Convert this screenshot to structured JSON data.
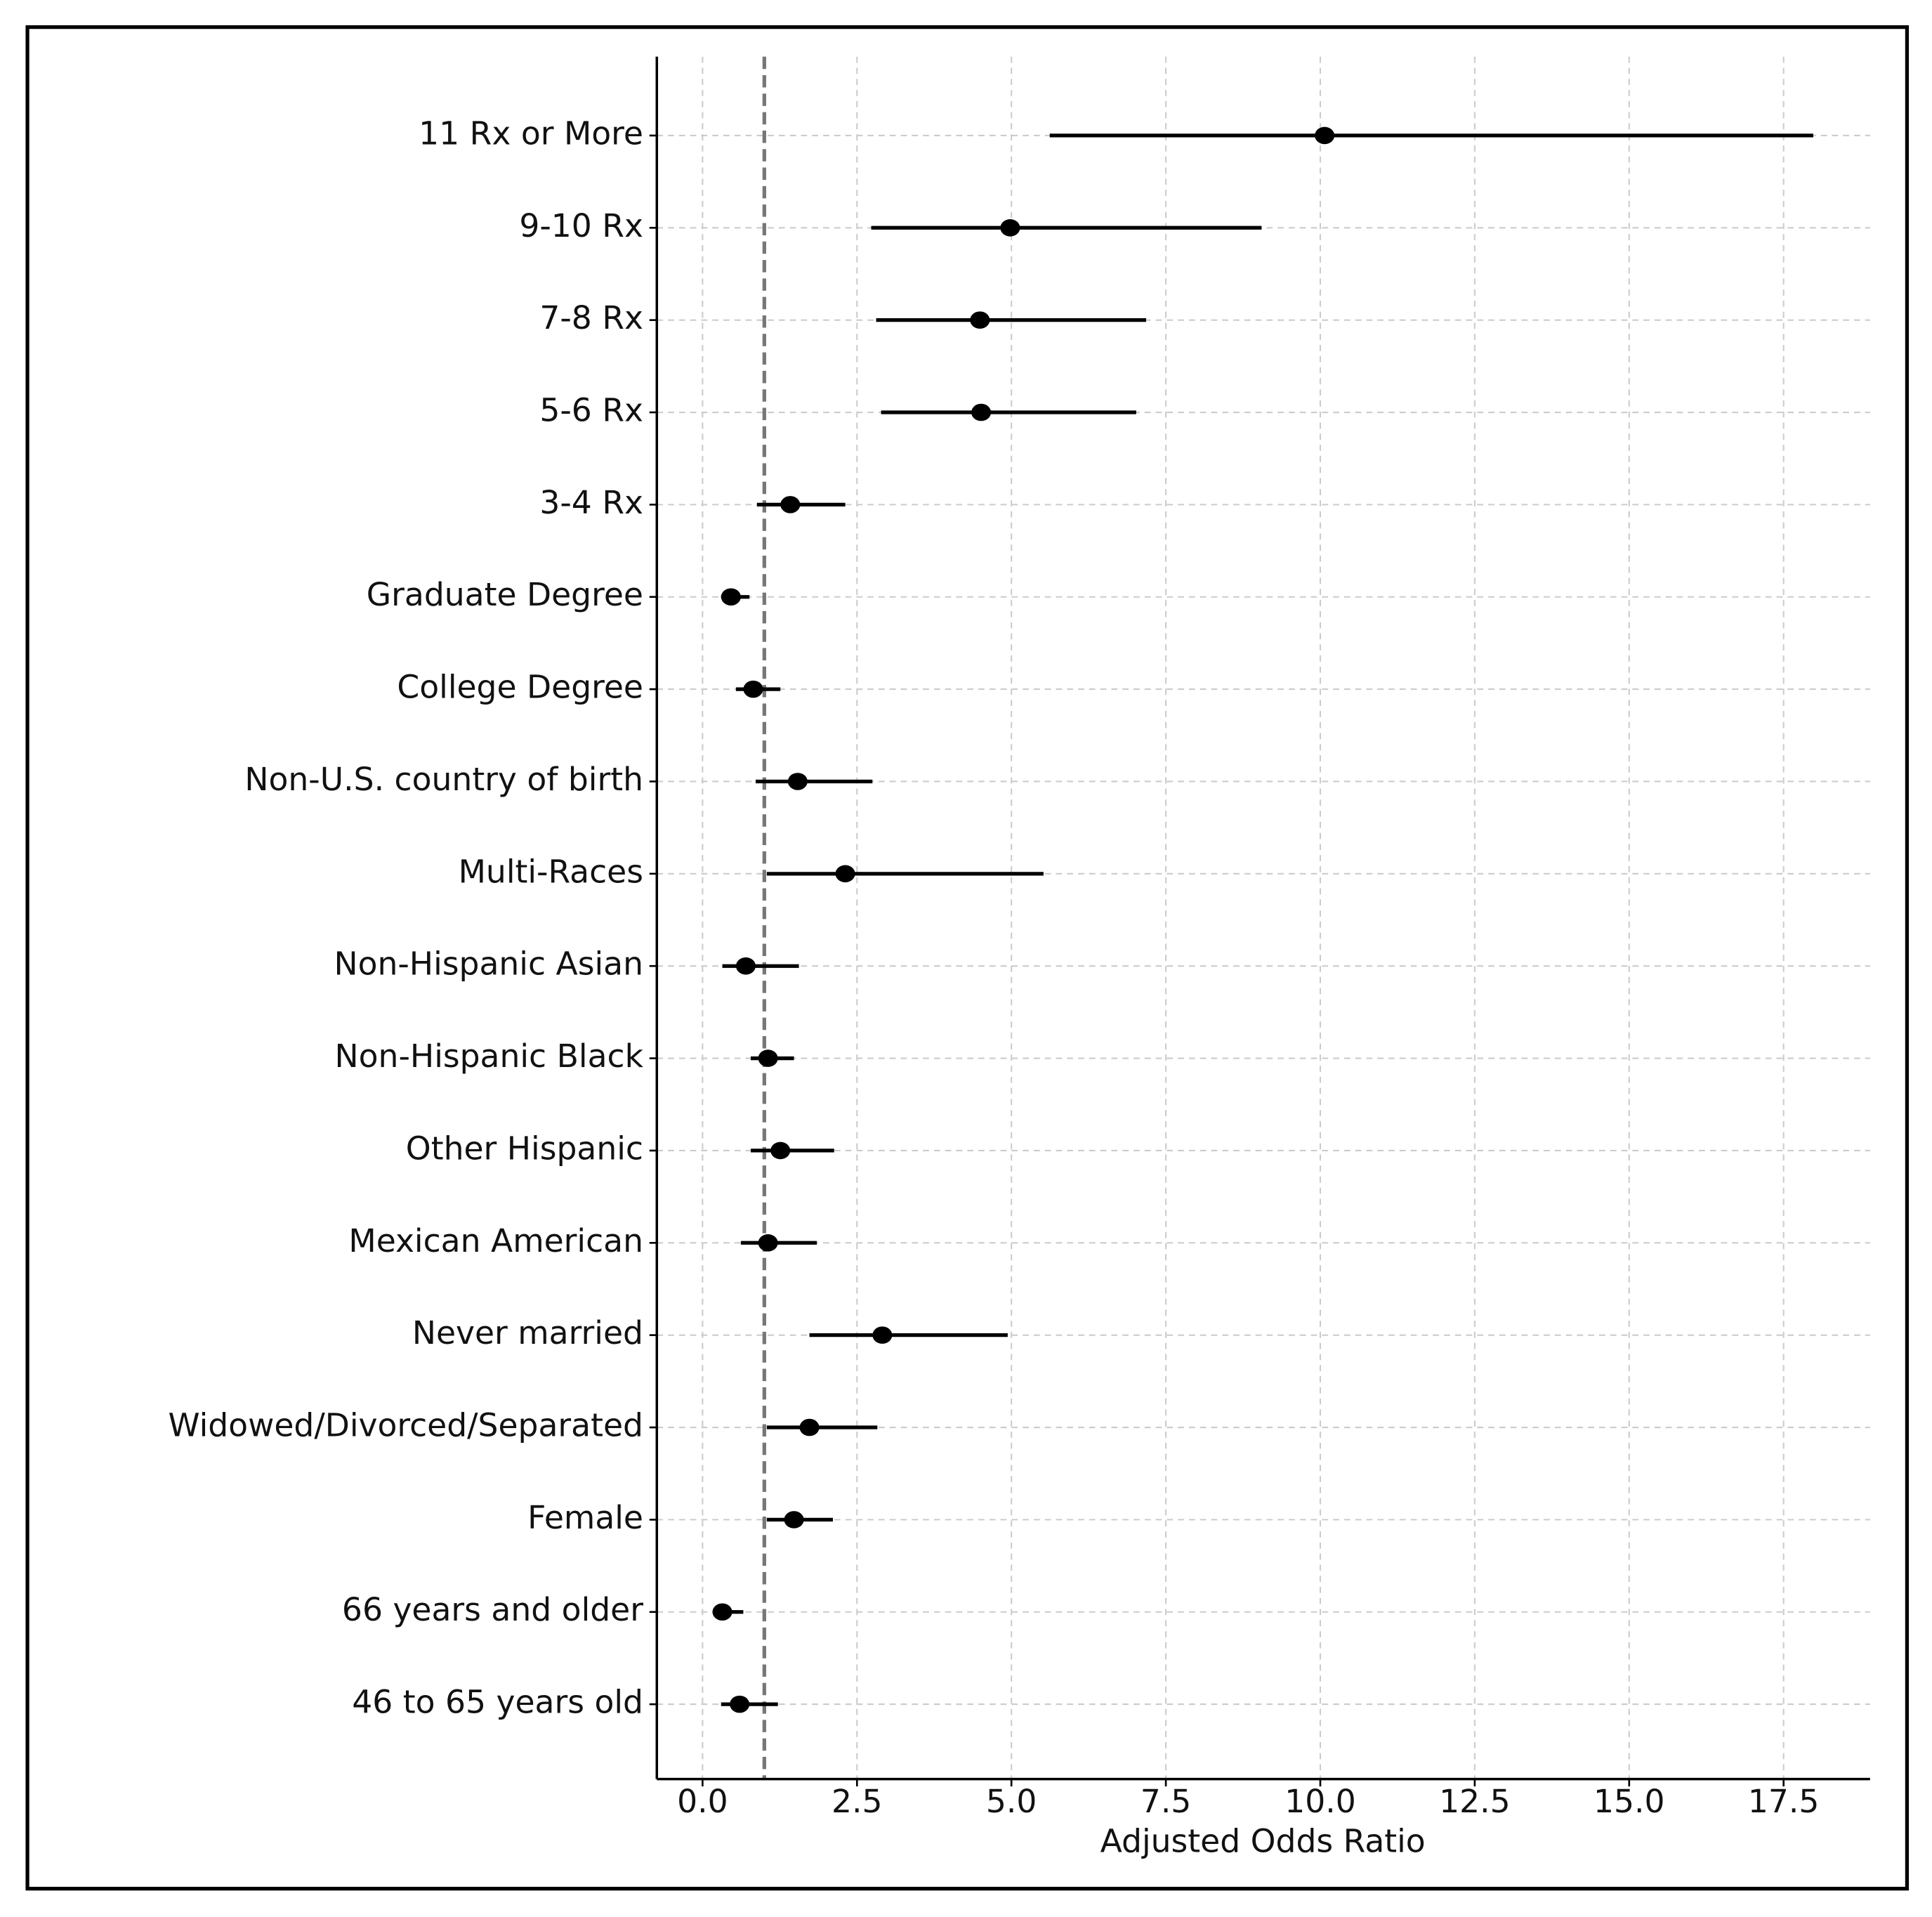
{
  "chart_data": {
    "type": "forest",
    "xlabel": "Adjusted Odds Ratio",
    "categories": [
      "11 Rx or More",
      "9-10 Rx",
      "7-8 Rx",
      "5-6 Rx",
      "3-4 Rx",
      "Graduate Degree",
      "College Degree",
      "Non-U.S. country of birth",
      "Multi-Races",
      "Non-Hispanic Asian",
      "Non-Hispanic Black",
      "Other Hispanic",
      "Mexican American",
      "Never married",
      "Widowed/Divorced/Separated",
      "Female",
      "66 years and older",
      "46 to 65 years old"
    ],
    "values": [
      10.07,
      4.98,
      4.49,
      4.51,
      1.42,
      0.46,
      0.82,
      1.54,
      2.31,
      0.7,
      1.06,
      1.26,
      1.06,
      2.91,
      1.73,
      1.48,
      0.32,
      0.6
    ],
    "lower": [
      5.62,
      2.73,
      2.81,
      2.89,
      0.88,
      0.3,
      0.54,
      0.86,
      1.04,
      0.32,
      0.78,
      0.78,
      0.62,
      1.73,
      1.04,
      1.04,
      0.18,
      0.3
    ],
    "upper": [
      17.98,
      9.05,
      7.18,
      7.02,
      2.31,
      0.76,
      1.26,
      2.75,
      5.52,
      1.56,
      1.48,
      2.13,
      1.85,
      4.94,
      2.83,
      2.11,
      0.66,
      1.22
    ],
    "color": "#000000",
    "ref_line": 1,
    "ref_color": "#777777",
    "xlim": [
      -0.74,
      18.9
    ],
    "xticks": [
      {
        "value": 0,
        "label": "0.0"
      },
      2.5,
      {
        "value": 5,
        "label": "5.0"
      },
      7.5,
      {
        "value": 10,
        "label": "10.0"
      },
      12.5,
      {
        "value": 15,
        "label": "15.0"
      },
      17.5
    ],
    "grid": true
  }
}
